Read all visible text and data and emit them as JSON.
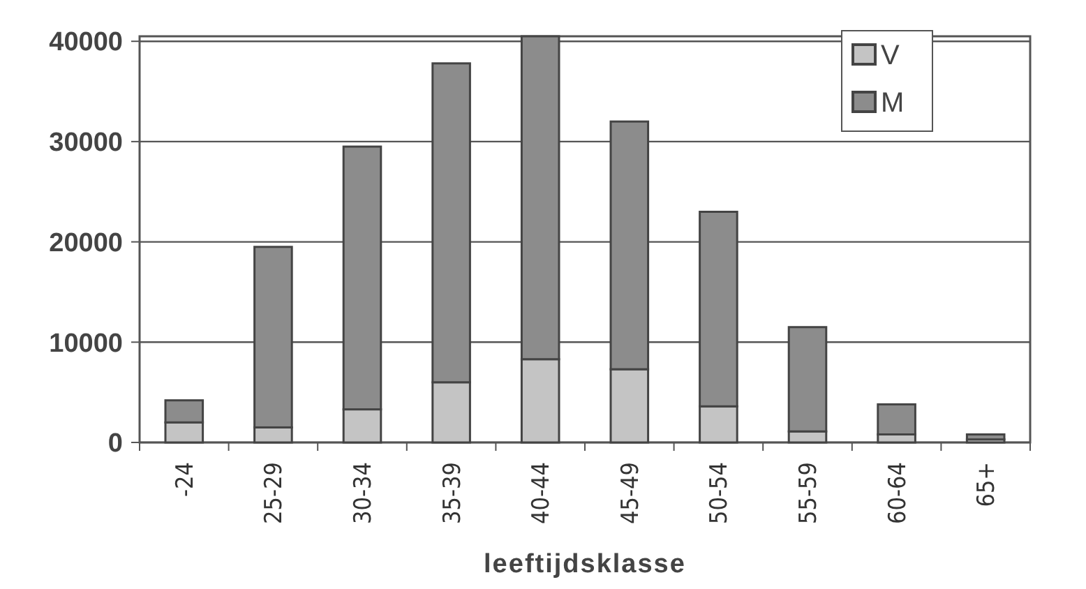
{
  "chart_data": {
    "type": "bar",
    "xlabel": "leeftijdsklasse",
    "categories": [
      "-24",
      "25-29",
      "30-34",
      "35-39",
      "40-44",
      "45-49",
      "50-54",
      "55-59",
      "60-64",
      "65+"
    ],
    "series": [
      {
        "name": "V",
        "color": "#c4c4c4",
        "values": [
          2000,
          1500,
          3300,
          6000,
          8300,
          7300,
          3600,
          1100,
          800,
          300
        ]
      },
      {
        "name": "M",
        "color": "#8c8c8c",
        "values": [
          2200,
          18000,
          26200,
          31800,
          32200,
          24700,
          19400,
          10400,
          3000,
          500
        ]
      }
    ],
    "stacked": true,
    "ylim": [
      0,
      40500
    ],
    "yticks": [
      0,
      10000,
      20000,
      30000,
      40000
    ],
    "grid": "y",
    "legend": "top right"
  }
}
